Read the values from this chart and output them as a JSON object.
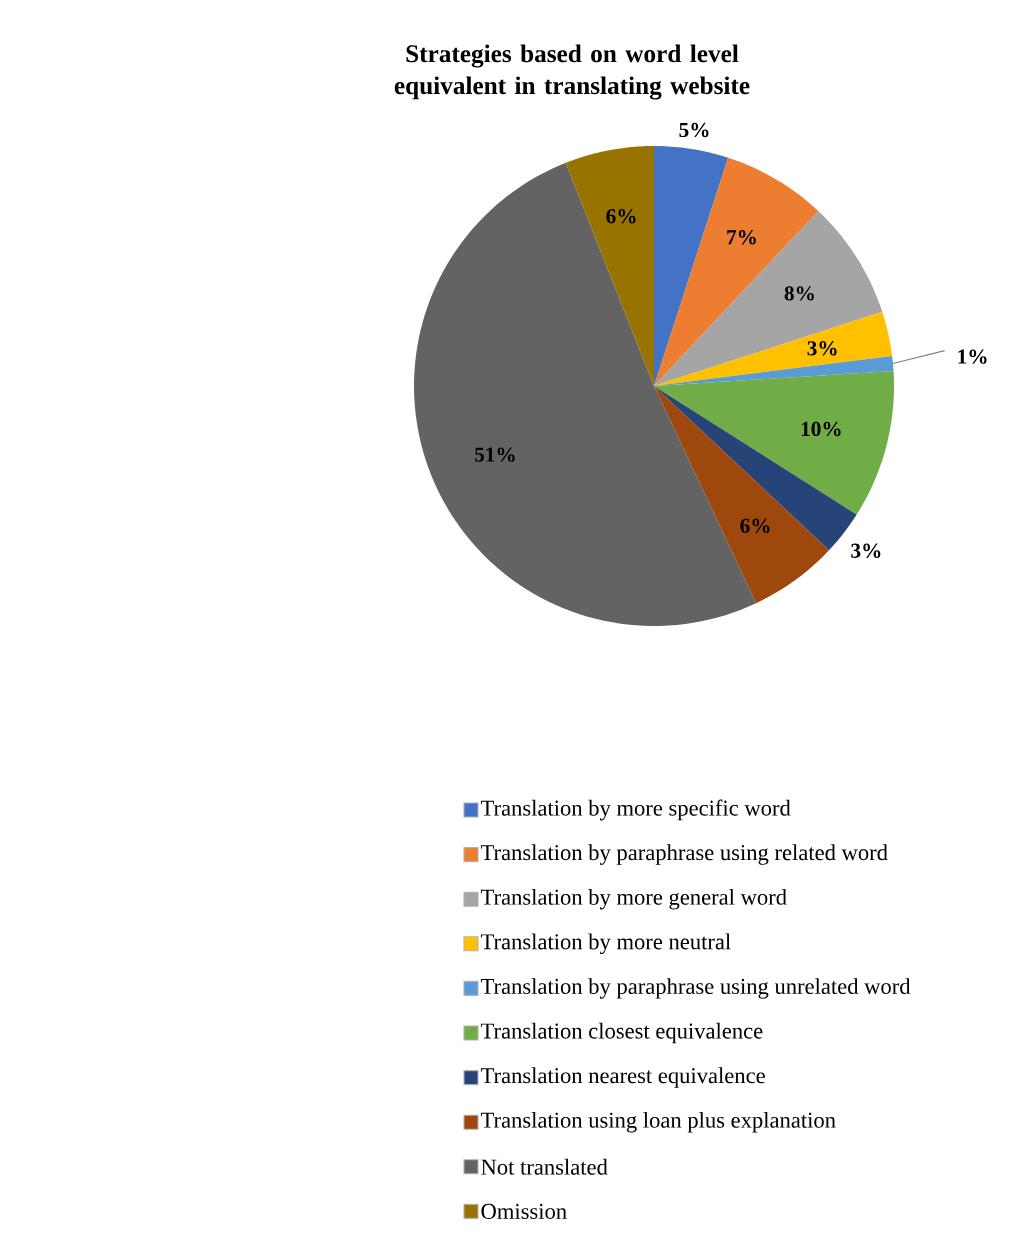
{
  "chart_data": {
    "type": "pie",
    "title": "Strategies based on word level equivalent in translating website",
    "categories": [
      "Translation by more specific word",
      "Translation by paraphrase using related word",
      "Translation by more general word",
      "Translation by more neutral",
      "Translation by paraphrase using unrelated word",
      "Translation closest equivalence",
      "Translation nearest equivalence",
      "Translation using loan plus explanation",
      "Not translated",
      "Omission"
    ],
    "values": [
      5,
      7,
      8,
      3,
      1,
      10,
      3,
      6,
      51,
      6
    ],
    "value_labels": [
      "5%",
      "7%",
      "8%",
      "3%",
      "1%",
      "10%",
      "3%",
      "6%",
      "51%",
      "6%"
    ],
    "colors": [
      "#4472c4",
      "#ed7d31",
      "#a5a5a5",
      "#ffc000",
      "#5b9bd5",
      "#70ad47",
      "#264478",
      "#9e480e",
      "#636363",
      "#997300"
    ],
    "legend": "bottom"
  }
}
